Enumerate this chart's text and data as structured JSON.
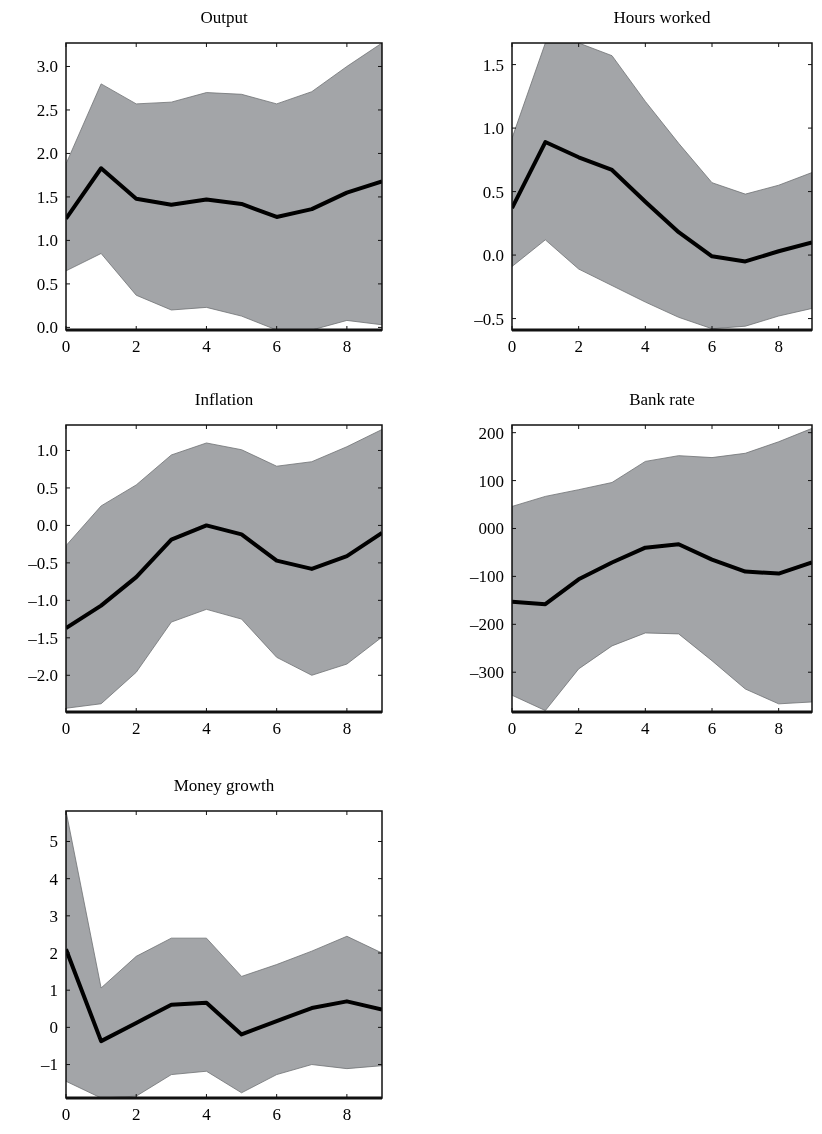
{
  "chart_data": [
    {
      "type": "line",
      "title": "Output",
      "x": [
        0,
        1,
        2,
        3,
        4,
        5,
        6,
        7,
        8,
        9
      ],
      "xlim": [
        0,
        9
      ],
      "xticks": [
        0,
        2,
        4,
        6,
        8
      ],
      "ylim": [
        -0.03,
        3.27
      ],
      "yticks": [
        {
          "value": 0,
          "label": "0.0"
        },
        0.5,
        {
          "value": 1,
          "label": "1.0"
        },
        1.5,
        {
          "value": 2,
          "label": "2.0"
        },
        2.5,
        {
          "value": 3,
          "label": "3.0"
        }
      ],
      "series": [
        {
          "color": "#000000",
          "values": [
            1.25,
            1.83,
            1.48,
            1.41,
            1.47,
            1.42,
            1.27,
            1.36,
            1.55,
            1.68
          ],
          "lower": [
            0.65,
            0.85,
            0.37,
            0.2,
            0.23,
            0.13,
            -0.03,
            -0.03,
            0.08,
            0.03
          ],
          "upper": [
            1.88,
            2.8,
            2.57,
            2.59,
            2.7,
            2.68,
            2.57,
            2.71,
            3.0,
            3.27
          ]
        }
      ]
    },
    {
      "type": "line",
      "title": "Hours worked",
      "x": [
        0,
        1,
        2,
        3,
        4,
        5,
        6,
        7,
        8,
        9
      ],
      "xlim": [
        0,
        9
      ],
      "xticks": [
        0,
        2,
        4,
        6,
        8
      ],
      "ylim": [
        -0.59,
        1.67
      ],
      "yticks": [
        {
          "value": -0.5,
          "label": "–0.5"
        },
        {
          "value": 0,
          "label": "0.0"
        },
        0.5,
        {
          "value": 1,
          "label": "1.0"
        },
        1.5
      ],
      "series": [
        {
          "color": "#000000",
          "values": [
            0.37,
            0.89,
            0.77,
            0.67,
            0.42,
            0.18,
            -0.01,
            -0.05,
            0.03,
            0.1
          ],
          "lower": [
            -0.09,
            0.12,
            -0.11,
            -0.24,
            -0.37,
            -0.49,
            -0.58,
            -0.56,
            -0.48,
            -0.42
          ],
          "upper": [
            0.92,
            1.67,
            1.67,
            1.57,
            1.21,
            0.88,
            0.57,
            0.48,
            0.55,
            0.65
          ]
        }
      ]
    },
    {
      "type": "line",
      "title": "Inflation",
      "x": [
        0,
        1,
        2,
        3,
        4,
        5,
        6,
        7,
        8,
        9
      ],
      "xlim": [
        0,
        9
      ],
      "xticks": [
        0,
        2,
        4,
        6,
        8
      ],
      "ylim": [
        -2.49,
        1.34
      ],
      "yticks": [
        {
          "value": -2,
          "label": "–2.0"
        },
        {
          "value": -1.5,
          "label": "–1.5"
        },
        {
          "value": -1,
          "label": "–1.0"
        },
        {
          "value": -0.5,
          "label": "–0.5"
        },
        {
          "value": 0,
          "label": "0.0"
        },
        0.5,
        {
          "value": 1,
          "label": "1.0"
        }
      ],
      "series": [
        {
          "color": "#000000",
          "values": [
            -1.37,
            -1.07,
            -0.69,
            -0.19,
            0.0,
            -0.12,
            -0.47,
            -0.58,
            -0.41,
            -0.1
          ],
          "lower": [
            -2.44,
            -2.38,
            -1.96,
            -1.29,
            -1.12,
            -1.25,
            -1.76,
            -2.0,
            -1.85,
            -1.49
          ],
          "upper": [
            -0.27,
            0.26,
            0.54,
            0.94,
            1.1,
            1.01,
            0.79,
            0.85,
            1.05,
            1.28
          ]
        }
      ]
    },
    {
      "type": "line",
      "title": "Bank rate",
      "x": [
        0,
        1,
        2,
        3,
        4,
        5,
        6,
        7,
        8,
        9
      ],
      "xlim": [
        0,
        9
      ],
      "xticks": [
        0,
        2,
        4,
        6,
        8
      ],
      "ylim": [
        -383,
        216
      ],
      "yticks": [
        {
          "value": -300,
          "label": "–300"
        },
        {
          "value": -200,
          "label": "–200"
        },
        {
          "value": -100,
          "label": "–100"
        },
        {
          "value": 0,
          "label": "000"
        },
        100,
        200
      ],
      "series": [
        {
          "color": "#000000",
          "values": [
            -153,
            -158,
            -106,
            -71,
            -40,
            -33,
            -65,
            -90,
            -94,
            -71
          ],
          "lower": [
            -348,
            -380,
            -293,
            -245,
            -218,
            -220,
            -276,
            -335,
            -366,
            -362
          ],
          "upper": [
            46,
            67,
            81,
            96,
            140,
            152,
            148,
            157,
            181,
            209
          ]
        }
      ]
    },
    {
      "type": "line",
      "title": "Money growth",
      "x": [
        0,
        1,
        2,
        3,
        4,
        5,
        6,
        7,
        8,
        9
      ],
      "xlim": [
        0,
        9
      ],
      "xticks": [
        0,
        2,
        4,
        6,
        8
      ],
      "ylim": [
        -1.9,
        5.82
      ],
      "yticks": [
        {
          "value": -1,
          "label": "–1"
        },
        0,
        1,
        2,
        3,
        4,
        5
      ],
      "series": [
        {
          "color": "#000000",
          "values": [
            2.1,
            -0.37,
            0.12,
            0.61,
            0.66,
            -0.19,
            0.17,
            0.52,
            0.7,
            0.48
          ],
          "lower": [
            -1.45,
            -1.9,
            -1.85,
            -1.27,
            -1.18,
            -1.76,
            -1.27,
            -1.0,
            -1.11,
            -1.03
          ],
          "upper": [
            5.82,
            1.06,
            1.91,
            2.4,
            2.4,
            1.37,
            1.69,
            2.05,
            2.45,
            2.0
          ]
        }
      ]
    }
  ]
}
